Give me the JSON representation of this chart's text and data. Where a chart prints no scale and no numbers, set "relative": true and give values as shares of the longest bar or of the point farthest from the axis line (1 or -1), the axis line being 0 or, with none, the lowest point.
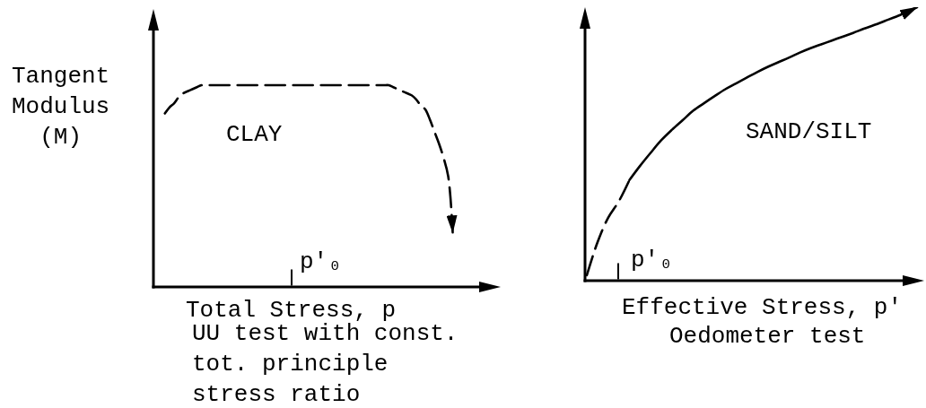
{
  "chart_data": [
    {
      "type": "line",
      "relative": true,
      "ylabel": "Tangent\nModulus\n(M)",
      "xlabel": "Total Stress, p",
      "annotations": [
        "CLAY",
        "p'₀",
        "UU test with const.\ntot. principle\nstress ratio"
      ],
      "categories": [
        null,
        null,
        null,
        null,
        null,
        null,
        null,
        null,
        null,
        null,
        null,
        null,
        null,
        null,
        null,
        null,
        null,
        null,
        null,
        null,
        null,
        null,
        null,
        null,
        null,
        null,
        null,
        null,
        null,
        null,
        null,
        null,
        null,
        null,
        null,
        null,
        null,
        null,
        null,
        null,
        null,
        null,
        null,
        null,
        null,
        null,
        null,
        null,
        null,
        null,
        null,
        null,
        null,
        null,
        null,
        null,
        null,
        null,
        null,
        null,
        null,
        null,
        null,
        null,
        null,
        null,
        null,
        null,
        null,
        null,
        null,
        null,
        null,
        null,
        null,
        null
      ],
      "series": [
        {
          "color": "#000000",
          "line_style": "dashed",
          "values": [
            null,
            null,
            0.86,
            0.89,
            0.91,
            0.94,
            0.96,
            0.97,
            0.98,
            0.99,
            1.0,
            1.0,
            1.0,
            1.0,
            1.0,
            1.0,
            1.0,
            1.0,
            1.0,
            1.0,
            1.0,
            1.0,
            1.0,
            1.0,
            1.0,
            1.0,
            1.0,
            1.0,
            1.0,
            1.0,
            1.0,
            1.0,
            1.0,
            1.0,
            1.0,
            1.0,
            1.0,
            1.0,
            1.0,
            1.0,
            1.0,
            1.0,
            1.0,
            1.0,
            1.0,
            1.0,
            1.0,
            1.0,
            1.0,
            1.0,
            1.0,
            1.0,
            0.99,
            0.98,
            0.97,
            0.96,
            0.95,
            0.93,
            0.9,
            0.88,
            0.83,
            0.77,
            0.71,
            0.64,
            0.55,
            0.27,
            null,
            null,
            null,
            null,
            null,
            null,
            null,
            null,
            null,
            null
          ]
        }
      ]
    },
    {
      "type": "line",
      "relative": true,
      "xlabel": "Effective Stress, p'",
      "annotations": [
        "SAND/SILT",
        "p'₀",
        "Oedometer test"
      ],
      "categories": [
        null,
        null,
        null,
        null,
        null,
        null,
        null,
        null,
        null,
        null,
        null,
        null,
        null,
        null,
        null,
        null,
        null,
        null,
        null,
        null,
        null,
        null,
        null,
        null,
        null,
        null,
        null,
        null,
        null,
        null,
        null,
        null
      ],
      "series": [
        {
          "color": "#000000",
          "line_style": "dashed",
          "values": [
            0.02,
            0.14,
            0.23,
            0.29,
            0.368,
            null,
            null,
            null,
            null,
            null,
            null,
            null,
            null,
            null,
            null,
            null,
            null,
            null,
            null,
            null,
            null,
            null,
            null,
            null,
            null,
            null,
            null,
            null,
            null,
            null,
            null,
            null
          ]
        },
        {
          "color": "#000000",
          "line_style": "solid",
          "values": [
            null,
            null,
            null,
            null,
            0.368,
            0.42,
            0.468,
            0.514,
            0.552,
            0.587,
            0.622,
            0.649,
            0.675,
            0.7,
            0.721,
            0.742,
            0.763,
            0.782,
            0.799,
            0.816,
            0.834,
            0.85,
            0.864,
            0.878,
            0.892,
            0.906,
            0.921,
            0.935,
            0.95,
            0.965,
            0.981,
            1.0
          ]
        }
      ]
    }
  ]
}
